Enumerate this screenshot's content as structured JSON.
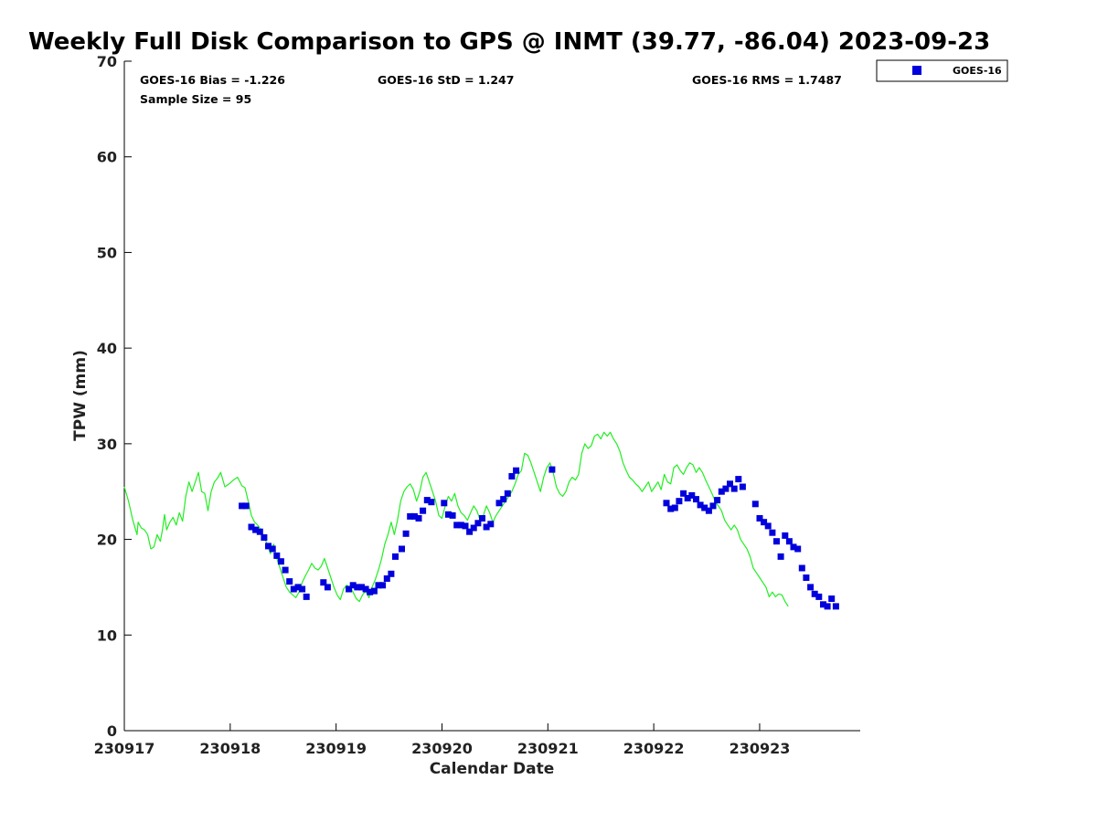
{
  "chart_data": {
    "type": "line",
    "title": "Weekly Full Disk Comparison to GPS @ INMT (39.77, -86.04) 2023-09-23",
    "xlabel": "Calendar Date",
    "ylabel": "TPW (mm)",
    "xlim": [
      0,
      6.95
    ],
    "ylim": [
      0,
      70
    ],
    "x_tick_values": [
      0,
      1,
      2,
      3,
      4,
      5,
      6
    ],
    "x_tick_labels": [
      "230917",
      "230918",
      "230919",
      "230920",
      "230921",
      "230922",
      "230923"
    ],
    "y_tick_values": [
      0,
      10,
      20,
      30,
      40,
      50,
      60,
      70
    ],
    "y_tick_labels": [
      "0",
      "10",
      "20",
      "30",
      "40",
      "50",
      "60",
      "70"
    ],
    "grid": false,
    "legend_position": "top-right",
    "legend": [
      {
        "label": "GOES-16",
        "marker": "square",
        "color": "#0000dd"
      }
    ],
    "stats": {
      "bias": "GOES-16 Bias = -1.226",
      "std": "GOES-16 StD = 1.247",
      "rms": "GOES-16 RMS = 1.7487",
      "sample": "Sample Size = 95"
    },
    "series": [
      {
        "name": "GPS",
        "style": "line",
        "color": "#22ee22",
        "points": [
          [
            0.0,
            25.5
          ],
          [
            0.04,
            24.0
          ],
          [
            0.08,
            22.0
          ],
          [
            0.12,
            20.5
          ],
          [
            0.13,
            21.8
          ],
          [
            0.16,
            21.2
          ],
          [
            0.19,
            21.0
          ],
          [
            0.22,
            20.5
          ],
          [
            0.25,
            19.0
          ],
          [
            0.28,
            19.2
          ],
          [
            0.31,
            20.5
          ],
          [
            0.34,
            19.8
          ],
          [
            0.36,
            21.0
          ],
          [
            0.38,
            22.6
          ],
          [
            0.4,
            21.0
          ],
          [
            0.43,
            21.8
          ],
          [
            0.46,
            22.3
          ],
          [
            0.49,
            21.5
          ],
          [
            0.52,
            22.8
          ],
          [
            0.55,
            21.9
          ],
          [
            0.58,
            24.5
          ],
          [
            0.61,
            26.0
          ],
          [
            0.64,
            25.0
          ],
          [
            0.67,
            26.0
          ],
          [
            0.7,
            27.0
          ],
          [
            0.73,
            25.0
          ],
          [
            0.76,
            24.8
          ],
          [
            0.79,
            23.0
          ],
          [
            0.82,
            25.0
          ],
          [
            0.85,
            26.0
          ],
          [
            0.88,
            26.4
          ],
          [
            0.91,
            27.0
          ],
          [
            0.95,
            25.5
          ],
          [
            0.99,
            25.8
          ],
          [
            1.03,
            26.2
          ],
          [
            1.07,
            26.5
          ],
          [
            1.11,
            25.6
          ],
          [
            1.14,
            25.4
          ],
          [
            1.17,
            24.0
          ],
          [
            1.2,
            22.5
          ],
          [
            1.23,
            21.8
          ],
          [
            1.26,
            21.5
          ],
          [
            1.29,
            21.0
          ],
          [
            1.32,
            20.2
          ],
          [
            1.35,
            19.5
          ],
          [
            1.38,
            18.5
          ],
          [
            1.41,
            19.5
          ],
          [
            1.44,
            18.0
          ],
          [
            1.47,
            17.0
          ],
          [
            1.5,
            16.0
          ],
          [
            1.53,
            15.0
          ],
          [
            1.56,
            14.5
          ],
          [
            1.59,
            14.2
          ],
          [
            1.62,
            13.9
          ],
          [
            1.65,
            14.5
          ],
          [
            1.68,
            15.5
          ],
          [
            1.71,
            16.2
          ],
          [
            1.74,
            16.8
          ],
          [
            1.77,
            17.5
          ],
          [
            1.8,
            17.0
          ],
          [
            1.83,
            16.8
          ],
          [
            1.86,
            17.2
          ],
          [
            1.89,
            18.0
          ],
          [
            1.92,
            17.0
          ],
          [
            1.95,
            16.0
          ],
          [
            1.98,
            15.0
          ],
          [
            2.01,
            14.2
          ],
          [
            2.04,
            13.7
          ],
          [
            2.07,
            14.8
          ],
          [
            2.1,
            15.2
          ],
          [
            2.13,
            15.0
          ],
          [
            2.16,
            14.5
          ],
          [
            2.19,
            13.8
          ],
          [
            2.22,
            13.5
          ],
          [
            2.25,
            14.2
          ],
          [
            2.28,
            14.6
          ],
          [
            2.31,
            13.9
          ],
          [
            2.34,
            15.0
          ],
          [
            2.37,
            15.8
          ],
          [
            2.4,
            16.8
          ],
          [
            2.43,
            18.0
          ],
          [
            2.46,
            19.5
          ],
          [
            2.49,
            20.5
          ],
          [
            2.52,
            21.8
          ],
          [
            2.55,
            20.5
          ],
          [
            2.58,
            22.0
          ],
          [
            2.61,
            24.0
          ],
          [
            2.64,
            25.0
          ],
          [
            2.67,
            25.5
          ],
          [
            2.7,
            25.8
          ],
          [
            2.73,
            25.2
          ],
          [
            2.76,
            24.0
          ],
          [
            2.79,
            25.0
          ],
          [
            2.82,
            26.5
          ],
          [
            2.85,
            27.0
          ],
          [
            2.88,
            26.0
          ],
          [
            2.91,
            25.0
          ],
          [
            2.94,
            24.0
          ],
          [
            2.97,
            22.5
          ],
          [
            3.0,
            22.2
          ],
          [
            3.03,
            23.5
          ],
          [
            3.06,
            24.5
          ],
          [
            3.09,
            24.0
          ],
          [
            3.12,
            24.8
          ],
          [
            3.15,
            23.5
          ],
          [
            3.18,
            22.8
          ],
          [
            3.21,
            22.5
          ],
          [
            3.24,
            22.0
          ],
          [
            3.27,
            22.8
          ],
          [
            3.3,
            23.5
          ],
          [
            3.33,
            23.0
          ],
          [
            3.36,
            22.0
          ],
          [
            3.39,
            22.5
          ],
          [
            3.42,
            23.5
          ],
          [
            3.45,
            22.8
          ],
          [
            3.48,
            21.8
          ],
          [
            3.51,
            22.5
          ],
          [
            3.54,
            23.0
          ],
          [
            3.57,
            23.5
          ],
          [
            3.6,
            24.0
          ],
          [
            3.63,
            24.5
          ],
          [
            3.66,
            25.0
          ],
          [
            3.69,
            25.8
          ],
          [
            3.72,
            26.8
          ],
          [
            3.75,
            27.2
          ],
          [
            3.78,
            29.0
          ],
          [
            3.81,
            28.8
          ],
          [
            3.84,
            28.0
          ],
          [
            3.87,
            27.0
          ],
          [
            3.9,
            26.0
          ],
          [
            3.93,
            25.0
          ],
          [
            3.96,
            26.5
          ],
          [
            3.99,
            27.5
          ],
          [
            4.02,
            28.0
          ],
          [
            4.05,
            27.0
          ],
          [
            4.08,
            25.5
          ],
          [
            4.11,
            24.8
          ],
          [
            4.14,
            24.5
          ],
          [
            4.17,
            25.0
          ],
          [
            4.2,
            26.0
          ],
          [
            4.23,
            26.5
          ],
          [
            4.26,
            26.2
          ],
          [
            4.29,
            26.8
          ],
          [
            4.32,
            29.0
          ],
          [
            4.35,
            30.0
          ],
          [
            4.38,
            29.5
          ],
          [
            4.41,
            29.8
          ],
          [
            4.44,
            30.8
          ],
          [
            4.47,
            31.0
          ],
          [
            4.5,
            30.5
          ],
          [
            4.53,
            31.2
          ],
          [
            4.56,
            30.8
          ],
          [
            4.59,
            31.2
          ],
          [
            4.62,
            30.5
          ],
          [
            4.65,
            30.0
          ],
          [
            4.68,
            29.2
          ],
          [
            4.71,
            28.0
          ],
          [
            4.74,
            27.2
          ],
          [
            4.77,
            26.5
          ],
          [
            4.8,
            26.2
          ],
          [
            4.83,
            25.8
          ],
          [
            4.86,
            25.5
          ],
          [
            4.89,
            25.0
          ],
          [
            4.92,
            25.5
          ],
          [
            4.95,
            26.0
          ],
          [
            4.98,
            25.0
          ],
          [
            5.01,
            25.5
          ],
          [
            5.04,
            26.0
          ],
          [
            5.07,
            25.2
          ],
          [
            5.1,
            26.8
          ],
          [
            5.13,
            26.0
          ],
          [
            5.16,
            25.8
          ],
          [
            5.19,
            27.5
          ],
          [
            5.22,
            27.8
          ],
          [
            5.25,
            27.2
          ],
          [
            5.28,
            26.8
          ],
          [
            5.31,
            27.5
          ],
          [
            5.34,
            28.0
          ],
          [
            5.37,
            27.8
          ],
          [
            5.4,
            27.0
          ],
          [
            5.43,
            27.5
          ],
          [
            5.46,
            27.0
          ],
          [
            5.49,
            26.2
          ],
          [
            5.52,
            25.5
          ],
          [
            5.55,
            24.8
          ],
          [
            5.58,
            24.0
          ],
          [
            5.61,
            23.5
          ],
          [
            5.64,
            23.0
          ],
          [
            5.67,
            22.0
          ],
          [
            5.7,
            21.5
          ],
          [
            5.73,
            21.0
          ],
          [
            5.76,
            21.5
          ],
          [
            5.79,
            21.0
          ],
          [
            5.82,
            20.0
          ],
          [
            5.85,
            19.5
          ],
          [
            5.88,
            19.0
          ],
          [
            5.91,
            18.2
          ],
          [
            5.94,
            17.0
          ],
          [
            5.97,
            16.5
          ],
          [
            6.0,
            16.0
          ],
          [
            6.03,
            15.5
          ],
          [
            6.06,
            15.0
          ],
          [
            6.09,
            14.0
          ],
          [
            6.12,
            14.5
          ],
          [
            6.15,
            14.0
          ],
          [
            6.18,
            14.3
          ],
          [
            6.21,
            14.2
          ],
          [
            6.24,
            13.5
          ],
          [
            6.27,
            13.0
          ]
        ]
      },
      {
        "name": "GOES-16",
        "style": "marker",
        "marker": "square",
        "color": "#0000dd",
        "points": [
          [
            1.11,
            23.5
          ],
          [
            1.15,
            23.5
          ],
          [
            1.2,
            21.3
          ],
          [
            1.24,
            21.0
          ],
          [
            1.28,
            20.8
          ],
          [
            1.32,
            20.2
          ],
          [
            1.36,
            19.3
          ],
          [
            1.4,
            19.0
          ],
          [
            1.44,
            18.3
          ],
          [
            1.48,
            17.7
          ],
          [
            1.52,
            16.8
          ],
          [
            1.56,
            15.6
          ],
          [
            1.6,
            14.8
          ],
          [
            1.64,
            15.0
          ],
          [
            1.68,
            14.8
          ],
          [
            1.72,
            14.0
          ],
          [
            1.88,
            15.5
          ],
          [
            1.92,
            15.0
          ],
          [
            2.12,
            14.8
          ],
          [
            2.16,
            15.2
          ],
          [
            2.2,
            15.0
          ],
          [
            2.24,
            15.0
          ],
          [
            2.28,
            14.8
          ],
          [
            2.32,
            14.5
          ],
          [
            2.36,
            14.6
          ],
          [
            2.4,
            15.2
          ],
          [
            2.44,
            15.2
          ],
          [
            2.48,
            15.9
          ],
          [
            2.52,
            16.4
          ],
          [
            2.56,
            18.2
          ],
          [
            2.62,
            19.0
          ],
          [
            2.66,
            20.6
          ],
          [
            2.7,
            22.4
          ],
          [
            2.74,
            22.4
          ],
          [
            2.78,
            22.2
          ],
          [
            2.82,
            23.0
          ],
          [
            2.86,
            24.1
          ],
          [
            2.9,
            23.9
          ],
          [
            3.02,
            23.8
          ],
          [
            3.06,
            22.6
          ],
          [
            3.1,
            22.5
          ],
          [
            3.14,
            21.5
          ],
          [
            3.18,
            21.5
          ],
          [
            3.22,
            21.4
          ],
          [
            3.26,
            20.8
          ],
          [
            3.3,
            21.2
          ],
          [
            3.34,
            21.7
          ],
          [
            3.38,
            22.2
          ],
          [
            3.42,
            21.3
          ],
          [
            3.46,
            21.6
          ],
          [
            3.54,
            23.8
          ],
          [
            3.58,
            24.2
          ],
          [
            3.62,
            24.8
          ],
          [
            3.66,
            26.6
          ],
          [
            3.7,
            27.2
          ],
          [
            4.04,
            27.3
          ],
          [
            5.12,
            23.8
          ],
          [
            5.16,
            23.2
          ],
          [
            5.2,
            23.3
          ],
          [
            5.24,
            24.0
          ],
          [
            5.28,
            24.8
          ],
          [
            5.32,
            24.3
          ],
          [
            5.36,
            24.6
          ],
          [
            5.4,
            24.2
          ],
          [
            5.44,
            23.6
          ],
          [
            5.48,
            23.3
          ],
          [
            5.52,
            23.0
          ],
          [
            5.56,
            23.5
          ],
          [
            5.6,
            24.1
          ],
          [
            5.64,
            25.0
          ],
          [
            5.68,
            25.3
          ],
          [
            5.72,
            25.8
          ],
          [
            5.76,
            25.3
          ],
          [
            5.8,
            26.3
          ],
          [
            5.84,
            25.5
          ],
          [
            5.96,
            23.7
          ],
          [
            6.0,
            22.2
          ],
          [
            6.04,
            21.8
          ],
          [
            6.08,
            21.4
          ],
          [
            6.12,
            20.7
          ],
          [
            6.16,
            19.8
          ],
          [
            6.2,
            18.2
          ],
          [
            6.24,
            20.4
          ],
          [
            6.28,
            19.8
          ],
          [
            6.32,
            19.2
          ],
          [
            6.36,
            19.0
          ],
          [
            6.4,
            17.0
          ],
          [
            6.44,
            16.0
          ],
          [
            6.48,
            15.0
          ],
          [
            6.52,
            14.3
          ],
          [
            6.56,
            14.0
          ],
          [
            6.6,
            13.2
          ],
          [
            6.64,
            13.0
          ],
          [
            6.68,
            13.8
          ],
          [
            6.72,
            13.0
          ]
        ]
      }
    ]
  }
}
